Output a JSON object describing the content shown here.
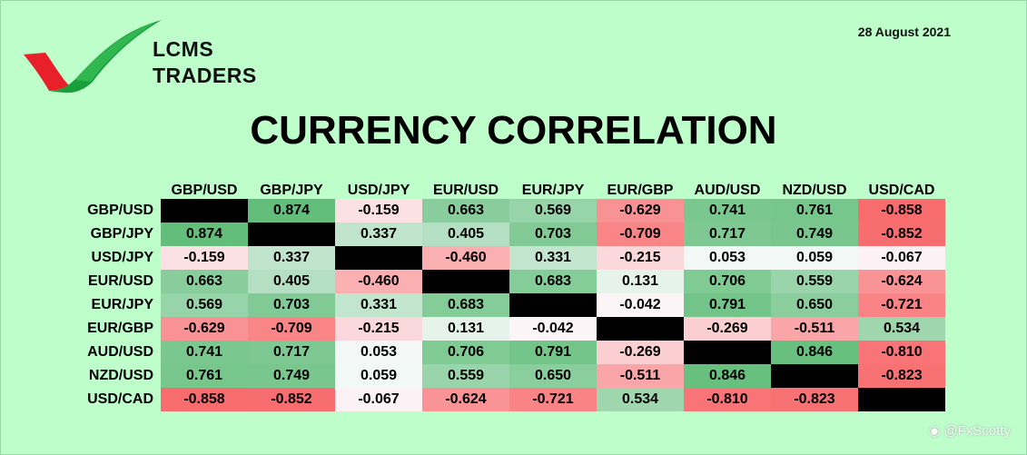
{
  "brand": {
    "line1": "LCMS",
    "line2": "TRADERS"
  },
  "date": "28 August 2021",
  "title": "CURRENCY CORRELATION",
  "watermark": {
    "icon": "weibo-icon",
    "handle": "@FxScotty"
  },
  "colors": {
    "background": "#bdfecb",
    "diagonal": "#000000",
    "positive": "#63be7b",
    "negative": "#f8696b",
    "neutral": "#fcfcff"
  },
  "matrix": {
    "pairs": [
      "GBP/USD",
      "GBP/JPY",
      "USD/JPY",
      "EUR/USD",
      "EUR/JPY",
      "EUR/GBP",
      "AUD/USD",
      "NZD/USD",
      "USD/CAD"
    ],
    "rows": [
      [
        "",
        "0.874",
        "-0.159",
        "0.663",
        "0.569",
        "-0.629",
        "0.741",
        "0.761",
        "-0.858"
      ],
      [
        "0.874",
        "",
        "0.337",
        "0.405",
        "0.703",
        "-0.709",
        "0.717",
        "0.749",
        "-0.852"
      ],
      [
        "-0.159",
        "0.337",
        "",
        "-0.460",
        "0.331",
        "-0.215",
        "0.053",
        "0.059",
        "-0.067"
      ],
      [
        "0.663",
        "0.405",
        "-0.460",
        "",
        "0.683",
        "0.131",
        "0.706",
        "0.559",
        "-0.624"
      ],
      [
        "0.569",
        "0.703",
        "0.331",
        "0.683",
        "",
        "-0.042",
        "0.791",
        "0.650",
        "-0.721"
      ],
      [
        "-0.629",
        "-0.709",
        "-0.215",
        "0.131",
        "-0.042",
        "",
        "-0.269",
        "-0.511",
        "0.534"
      ],
      [
        "0.741",
        "0.717",
        "0.053",
        "0.706",
        "0.791",
        "-0.269",
        "",
        "0.846",
        "-0.810"
      ],
      [
        "0.761",
        "0.749",
        "0.059",
        "0.559",
        "0.650",
        "-0.511",
        "0.846",
        "",
        "-0.823"
      ],
      [
        "-0.858",
        "-0.852",
        "-0.067",
        "-0.624",
        "-0.721",
        "0.534",
        "-0.810",
        "-0.823",
        ""
      ]
    ]
  }
}
